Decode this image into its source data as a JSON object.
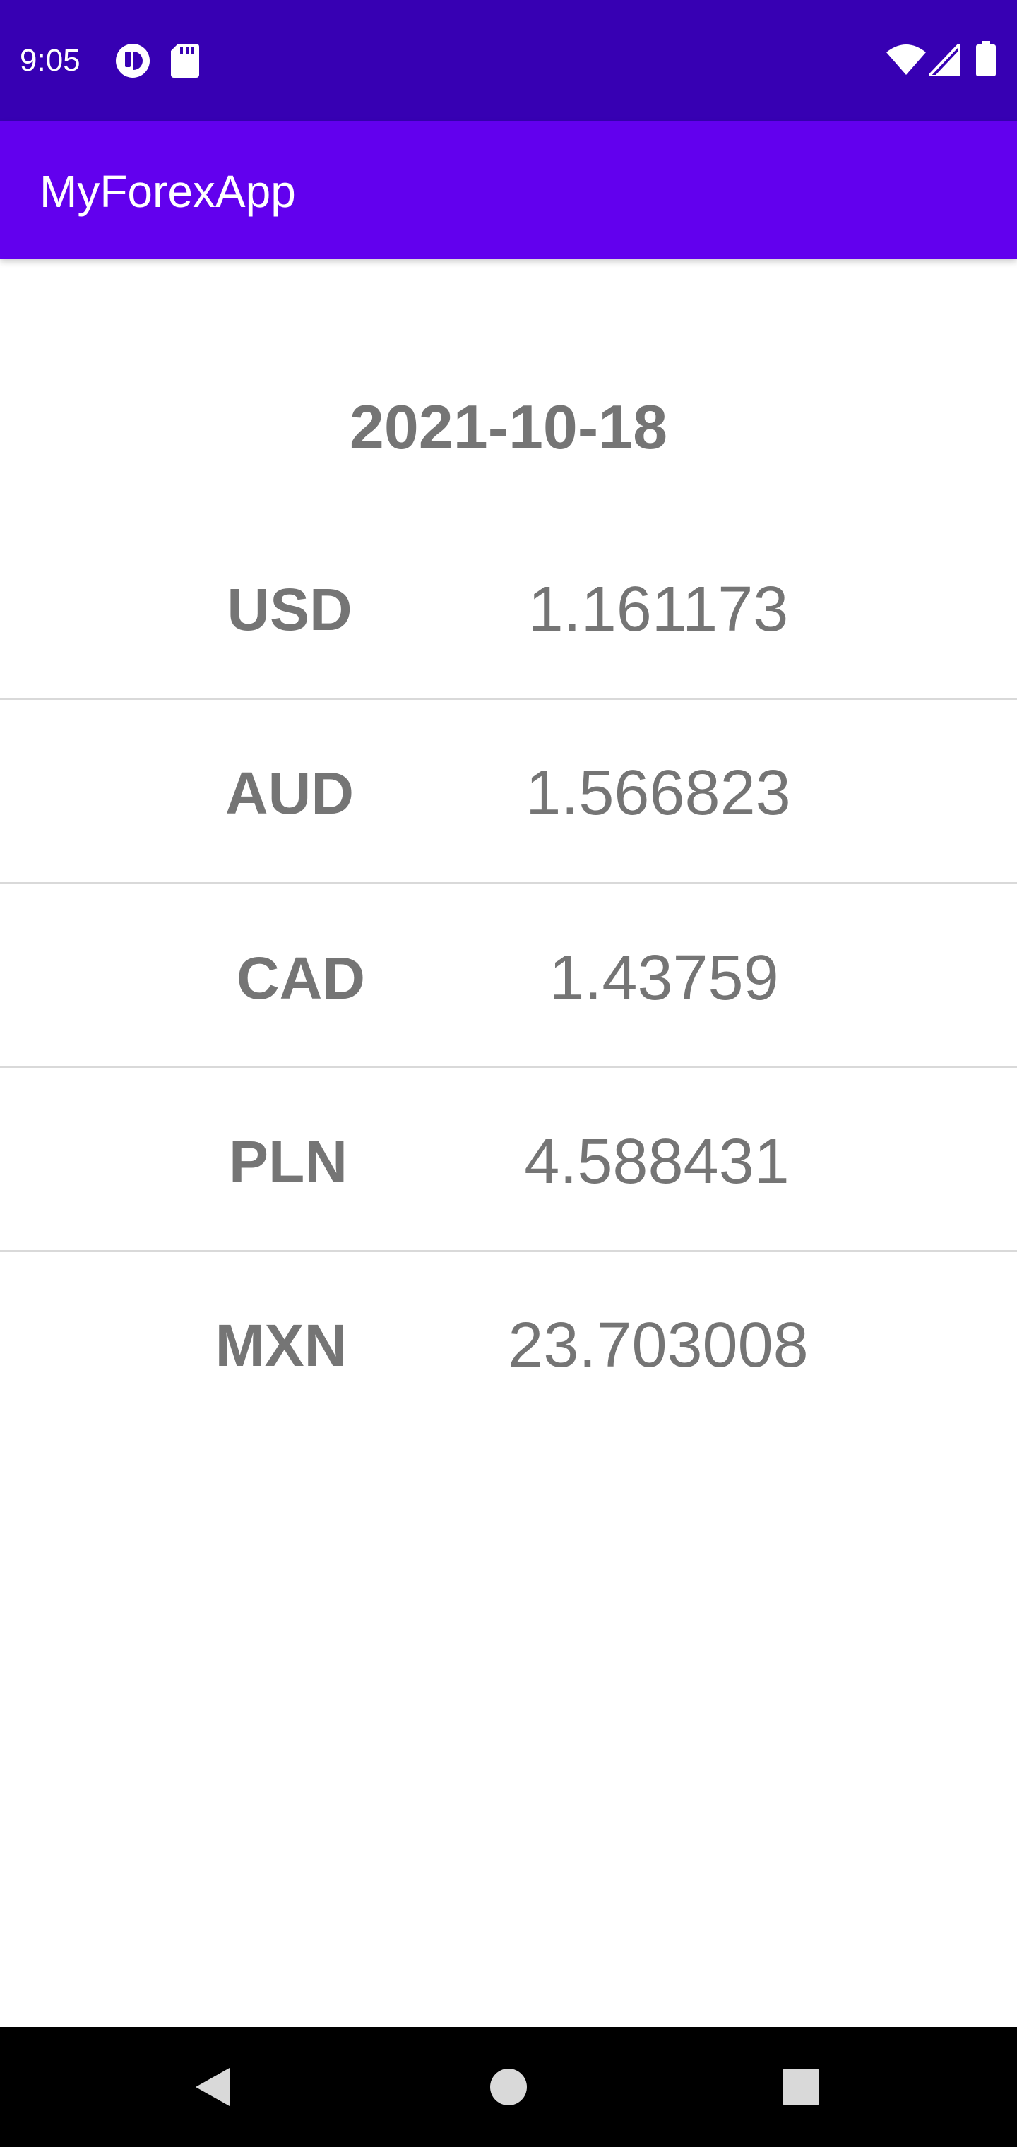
{
  "status_bar": {
    "time": "9:05",
    "left_icons": [
      "app-notification-icon",
      "sd-card-icon"
    ],
    "right_icons": [
      "wifi-icon",
      "cell-signal-icon",
      "battery-icon"
    ],
    "background": "#3700b3"
  },
  "app_bar": {
    "title": "MyForexApp",
    "background": "#6200ee"
  },
  "content": {
    "date": "2021-10-18",
    "rates": [
      {
        "code": "USD",
        "value": "1.161173"
      },
      {
        "code": "AUD",
        "value": "1.566823"
      },
      {
        "code": "CAD",
        "value": "1.43759"
      },
      {
        "code": "PLN",
        "value": "4.588431"
      },
      {
        "code": "MXN",
        "value": "23.703008"
      }
    ]
  },
  "nav_bar": {
    "buttons": [
      "back-icon",
      "home-icon",
      "recents-icon"
    ]
  }
}
